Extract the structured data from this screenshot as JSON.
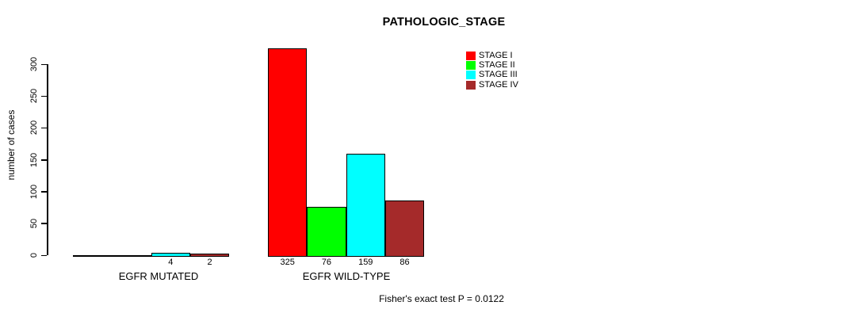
{
  "chart_data": {
    "type": "bar",
    "title": "PATHOLOGIC_STAGE",
    "xlabel": "",
    "ylabel": "number of cases",
    "ylim": [
      0,
      300
    ],
    "yticks": [
      0,
      50,
      100,
      150,
      200,
      250,
      300
    ],
    "grid": false,
    "legend_position": "top-right-outside-plot",
    "series_names": [
      "STAGE I",
      "STAGE II",
      "STAGE III",
      "STAGE IV"
    ],
    "colors": [
      "#FF0000",
      "#00FF00",
      "#00FFFF",
      "#A52A2A"
    ],
    "groups": [
      {
        "label": "EGFR MUTATED",
        "values": [
          0,
          0,
          4,
          2
        ],
        "bar_labels": [
          "",
          "",
          "4",
          "2"
        ]
      },
      {
        "label": "EGFR WILD-TYPE",
        "values": [
          325,
          76,
          159,
          86
        ],
        "bar_labels": [
          "325",
          "76",
          "159",
          "86"
        ]
      }
    ],
    "annotation": "Fisher's exact test P = 0.0122"
  }
}
